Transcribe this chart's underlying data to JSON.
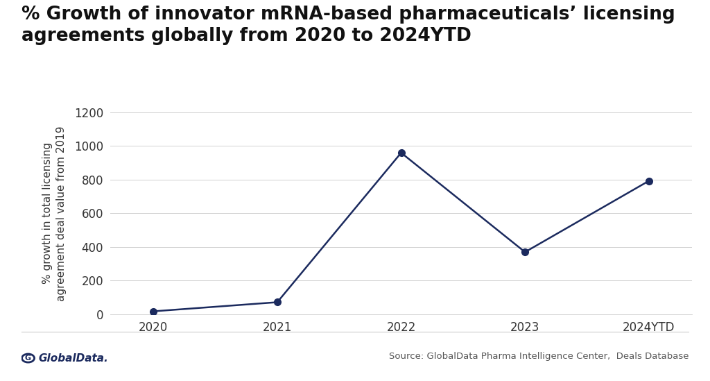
{
  "title_line1": "% Growth of innovator mRNA-based pharmaceuticals’ licensing",
  "title_line2": "agreements globally from 2020 to 2024YTD",
  "ylabel": "% growth in total licensing\nagreement deal value from 2019",
  "x_labels": [
    "2020",
    "2021",
    "2022",
    "2023",
    "2024YTD"
  ],
  "x_values": [
    0,
    1,
    2,
    3,
    4
  ],
  "y_values": [
    18,
    72,
    960,
    370,
    793
  ],
  "ylim": [
    0,
    1200
  ],
  "yticks": [
    0,
    200,
    400,
    600,
    800,
    1000,
    1200
  ],
  "line_color": "#1b2a5e",
  "marker": "o",
  "marker_size": 7,
  "linewidth": 1.8,
  "title_fontsize": 19,
  "axis_label_fontsize": 11,
  "tick_fontsize": 12,
  "background_color": "#ffffff",
  "source_text": "Source: GlobalData Pharma Intelligence Center,  Deals Database",
  "source_fontsize": 9.5,
  "logo_text": "GlobalData.",
  "grid_color": "#d0d0d0",
  "grid_linewidth": 0.7,
  "footer_line_color": "#cccccc",
  "logo_color": "#1b2a5e",
  "source_color": "#555555"
}
